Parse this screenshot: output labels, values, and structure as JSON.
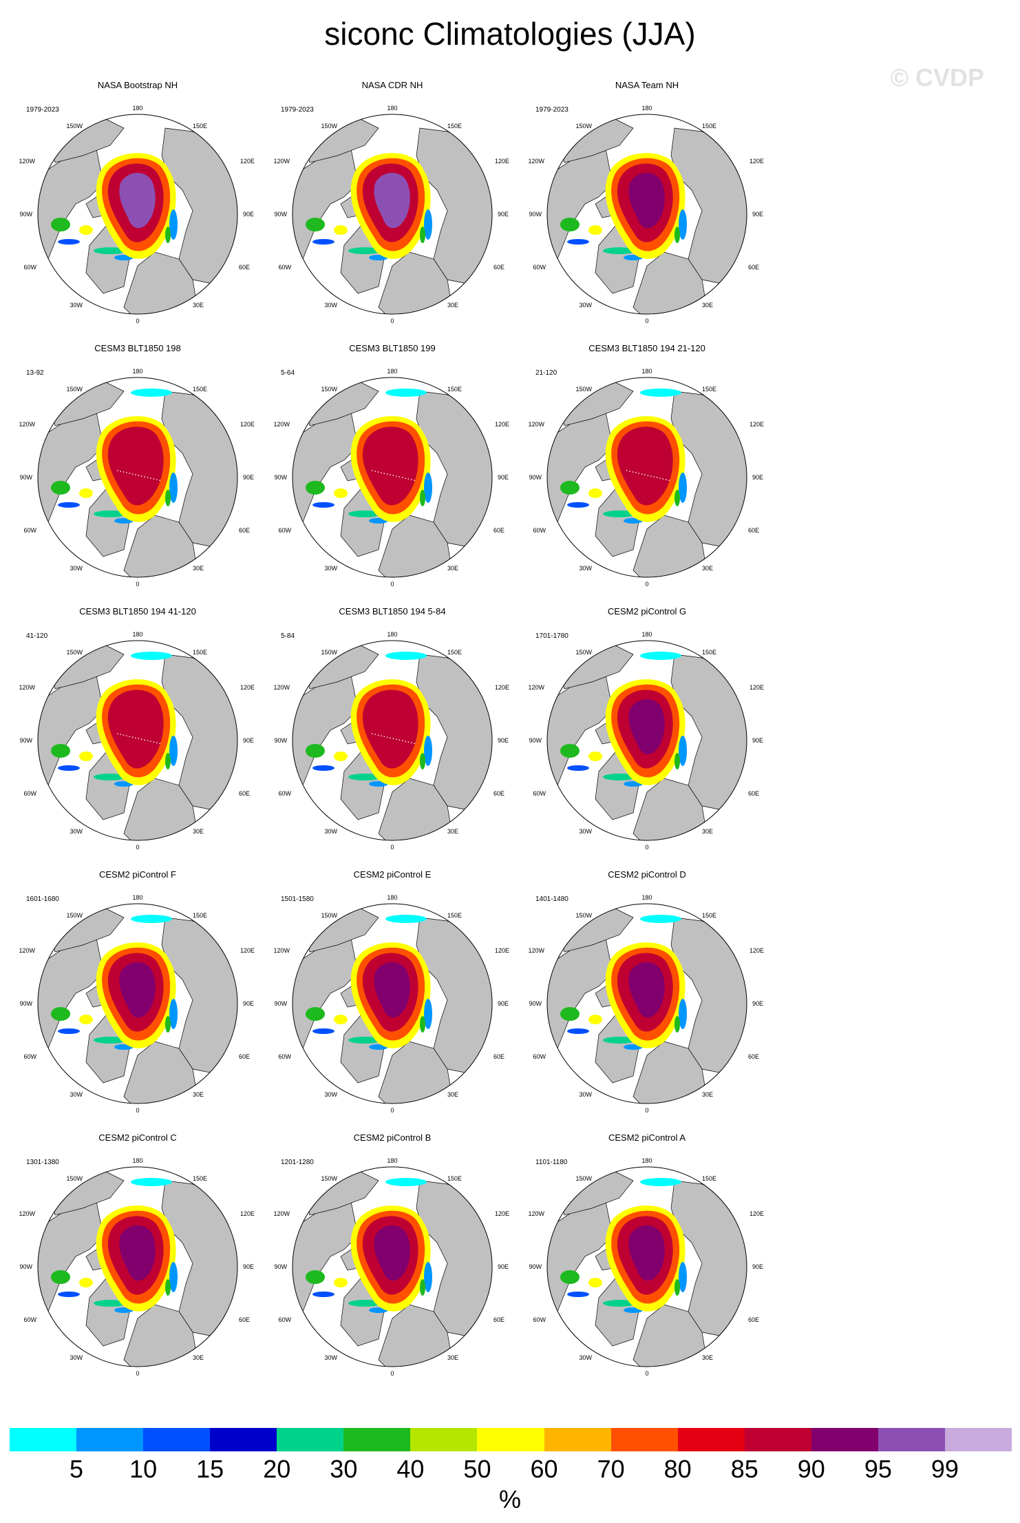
{
  "title": "siconc Climatologies (JJA)",
  "watermark": "© CVDP",
  "longitude_labels": {
    "top": "180",
    "bottom": "0",
    "upper_left": "150W",
    "upper_right": "150E",
    "mid_upper_left": "120W",
    "mid_upper_right": "120E",
    "left": "90W",
    "right": "90E",
    "mid_lower_left": "60W",
    "mid_lower_right": "60E",
    "lower_left": "30W",
    "lower_right": "30E"
  },
  "panels": [
    {
      "title": "NASA Bootstrap NH",
      "years": "1979-2023",
      "pack": "obs"
    },
    {
      "title": "NASA CDR NH",
      "years": "1979-2023",
      "pack": "obs"
    },
    {
      "title": "NASA Team NH",
      "years": "1979-2023",
      "pack": "team"
    },
    {
      "title": "CESM3 BLT1850 198",
      "years": "13-92",
      "pack": "cesm3"
    },
    {
      "title": "CESM3 BLT1850 199",
      "years": "5-64",
      "pack": "cesm3"
    },
    {
      "title": "CESM3 BLT1850 194 21-120",
      "years": "21-120",
      "pack": "cesm3"
    },
    {
      "title": "CESM3 BLT1850 194 41-120",
      "years": "41-120",
      "pack": "cesm3"
    },
    {
      "title": "CESM3 BLT1850 194 5-84",
      "years": "5-84",
      "pack": "cesm3"
    },
    {
      "title": "CESM2 piControl G",
      "years": "1701-1780",
      "pack": "cesm2"
    },
    {
      "title": "CESM2 piControl F",
      "years": "1601-1680",
      "pack": "cesm2"
    },
    {
      "title": "CESM2 piControl E",
      "years": "1501-1580",
      "pack": "cesm2"
    },
    {
      "title": "CESM2 piControl D",
      "years": "1401-1480",
      "pack": "cesm2"
    },
    {
      "title": "CESM2 piControl C",
      "years": "1301-1380",
      "pack": "cesm2"
    },
    {
      "title": "CESM2 piControl B",
      "years": "1201-1280",
      "pack": "cesm2"
    },
    {
      "title": "CESM2 piControl A",
      "years": "1101-1180",
      "pack": "cesm2"
    }
  ],
  "colorbar": {
    "units": "%",
    "labels": [
      "5",
      "10",
      "15",
      "20",
      "30",
      "40",
      "50",
      "60",
      "70",
      "80",
      "85",
      "90",
      "95",
      "99"
    ],
    "colors": [
      "#00ffff",
      "#0096ff",
      "#0050ff",
      "#0000cd",
      "#00d28c",
      "#1eb91e",
      "#b4e600",
      "#ffff00",
      "#ffb400",
      "#ff5000",
      "#e60014",
      "#be0032",
      "#82006e",
      "#8c50b4",
      "#c8aadc"
    ]
  },
  "map_colors": {
    "land": "#c0c0c0",
    "ocean": "#ffffff",
    "coast": "#000000"
  }
}
